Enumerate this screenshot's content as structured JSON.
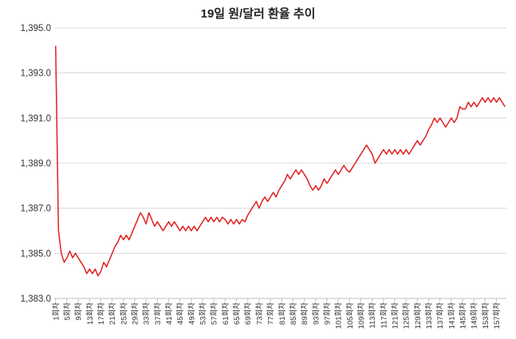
{
  "chart_data": {
    "type": "line",
    "title": "19일 원/달러 환율 추이",
    "xlabel": "",
    "ylabel": "",
    "ylim": [
      1383.0,
      1395.0
    ],
    "yticks": [
      "1,383.0",
      "1,385.0",
      "1,387.0",
      "1,389.0",
      "1,391.0",
      "1,393.0",
      "1,395.0"
    ],
    "grid": true,
    "legend": "none",
    "line_color": "#e02020",
    "x_tick_labels": [
      "1회차",
      "5회차",
      "9회차",
      "13회차",
      "17회차",
      "21회차",
      "25회차",
      "29회차",
      "33회차",
      "37회차",
      "41회차",
      "45회차",
      "49회차",
      "53회차",
      "57회차",
      "61회차",
      "65회차",
      "69회차",
      "73회차",
      "77회차",
      "81회차",
      "85회차",
      "89회차",
      "93회차",
      "97회차",
      "101회차",
      "105회차",
      "109회차",
      "113회차",
      "117회차",
      "121회차",
      "125회차",
      "129회차",
      "133회차",
      "137회차",
      "141회차",
      "145회차",
      "149회차",
      "153회차",
      "157회차"
    ],
    "series": [
      {
        "values": [
          1394.2,
          1386.0,
          1385.0,
          1384.6,
          1384.8,
          1385.1,
          1384.8,
          1385.0,
          1384.8,
          1384.6,
          1384.4,
          1384.1,
          1384.3,
          1384.1,
          1384.3,
          1384.0,
          1384.2,
          1384.6,
          1384.4,
          1384.7,
          1385.0,
          1385.3,
          1385.5,
          1385.8,
          1385.6,
          1385.8,
          1385.6,
          1385.9,
          1386.2,
          1386.5,
          1386.8,
          1386.6,
          1386.3,
          1386.8,
          1386.5,
          1386.2,
          1386.4,
          1386.2,
          1386.0,
          1386.2,
          1386.4,
          1386.2,
          1386.4,
          1386.2,
          1386.0,
          1386.2,
          1386.0,
          1386.2,
          1386.0,
          1386.2,
          1386.0,
          1386.2,
          1386.4,
          1386.6,
          1386.4,
          1386.6,
          1386.4,
          1386.6,
          1386.4,
          1386.6,
          1386.5,
          1386.3,
          1386.5,
          1386.3,
          1386.5,
          1386.3,
          1386.5,
          1386.4,
          1386.7,
          1386.9,
          1387.1,
          1387.3,
          1387.0,
          1387.3,
          1387.5,
          1387.3,
          1387.5,
          1387.7,
          1387.5,
          1387.8,
          1388.0,
          1388.2,
          1388.5,
          1388.3,
          1388.5,
          1388.7,
          1388.5,
          1388.7,
          1388.5,
          1388.3,
          1388.0,
          1387.8,
          1388.0,
          1387.8,
          1388.0,
          1388.3,
          1388.1,
          1388.3,
          1388.5,
          1388.7,
          1388.5,
          1388.7,
          1388.9,
          1388.7,
          1388.6,
          1388.8,
          1389.0,
          1389.2,
          1389.4,
          1389.6,
          1389.8,
          1389.6,
          1389.4,
          1389.0,
          1389.2,
          1389.4,
          1389.6,
          1389.4,
          1389.6,
          1389.4,
          1389.6,
          1389.4,
          1389.6,
          1389.4,
          1389.6,
          1389.4,
          1389.6,
          1389.8,
          1390.0,
          1389.8,
          1390.0,
          1390.2,
          1390.5,
          1390.7,
          1391.0,
          1390.8,
          1391.0,
          1390.8,
          1390.6,
          1390.8,
          1391.0,
          1390.8,
          1391.0,
          1391.5,
          1391.4,
          1391.4,
          1391.7,
          1391.5,
          1391.7,
          1391.5,
          1391.7,
          1391.9,
          1391.7,
          1391.9,
          1391.7,
          1391.9,
          1391.7,
          1391.9,
          1391.7,
          1391.5
        ]
      }
    ]
  }
}
